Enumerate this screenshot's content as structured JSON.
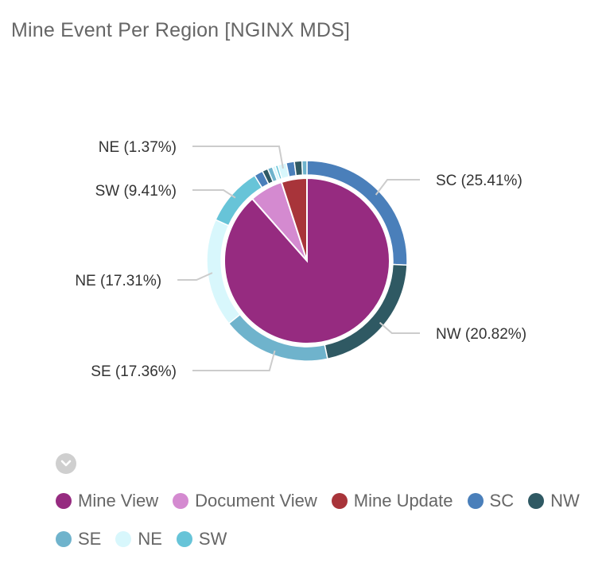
{
  "title": "Mine Event Per Region [NGINX MDS]",
  "toggle_icon": "chevron-down-icon",
  "chart_data": {
    "type": "pie",
    "title": "Mine Event Per Region [NGINX MDS]",
    "inner": [
      {
        "name": "Mine View",
        "value": 88.5,
        "color": "#962b80"
      },
      {
        "name": "Document View",
        "value": 6.5,
        "color": "#d48ad0"
      },
      {
        "name": "Mine Update",
        "value": 5.0,
        "color": "#a8343a"
      }
    ],
    "outer": [
      {
        "name": "SC",
        "value": 25.41,
        "color": "#4a7fba",
        "label": "SC (25.41%)"
      },
      {
        "name": "NW",
        "value": 20.82,
        "color": "#2f5963",
        "label": "NW (20.82%)"
      },
      {
        "name": "SE",
        "value": 17.36,
        "color": "#6fb3cc",
        "label": "SE (17.36%)"
      },
      {
        "name": "NE",
        "value": 17.31,
        "color": "#d8f7fc",
        "label": "NE (17.31%)"
      },
      {
        "name": "SW",
        "value": 9.41,
        "color": "#67c4d8",
        "label": "SW (9.41%)"
      },
      {
        "name": "SC",
        "value": 1.4,
        "color": "#4a7fba",
        "label": ""
      },
      {
        "name": "NW",
        "value": 0.9,
        "color": "#2f5963",
        "label": ""
      },
      {
        "name": "SE",
        "value": 0.8,
        "color": "#6fb3cc",
        "label": ""
      },
      {
        "name": "NE",
        "value": 0.5,
        "color": "#d8f7fc",
        "label": ""
      },
      {
        "name": "SW",
        "value": 0.4,
        "color": "#67c4d8",
        "label": ""
      },
      {
        "name": "NE",
        "value": 1.37,
        "color": "#d8f7fc",
        "label": "NE (1.37%)"
      },
      {
        "name": "SC",
        "value": 1.3,
        "color": "#4a7fba",
        "label": ""
      },
      {
        "name": "NW",
        "value": 1.2,
        "color": "#2f5963",
        "label": ""
      },
      {
        "name": "SE",
        "value": 0.8,
        "color": "#6fb3cc",
        "label": ""
      }
    ],
    "legend": [
      {
        "label": "Mine View",
        "color": "#962b80"
      },
      {
        "label": "Document View",
        "color": "#d48ad0"
      },
      {
        "label": "Mine Update",
        "color": "#a8343a"
      },
      {
        "label": "SC",
        "color": "#4a7fba"
      },
      {
        "label": "NW",
        "color": "#2f5963"
      },
      {
        "label": "SE",
        "color": "#6fb3cc"
      },
      {
        "label": "NE",
        "color": "#d8f7fc"
      },
      {
        "label": "SW",
        "color": "#67c4d8"
      }
    ]
  }
}
